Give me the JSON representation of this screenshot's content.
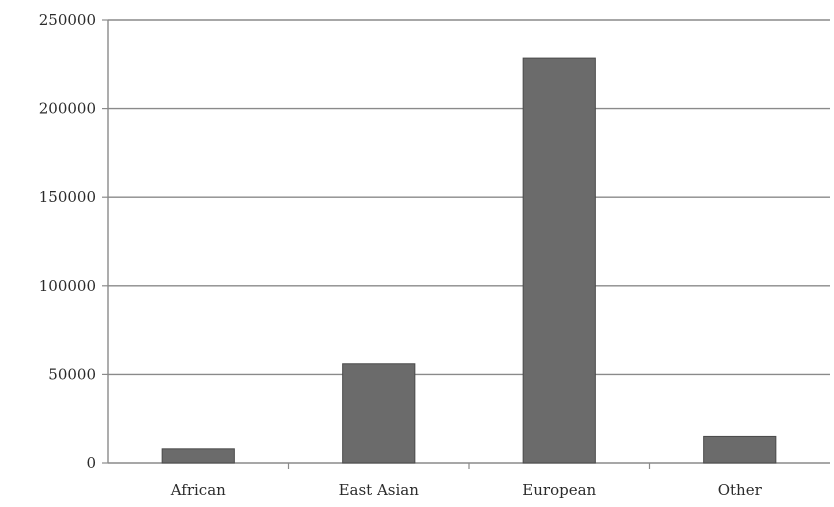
{
  "chart_data": {
    "type": "bar",
    "categories": [
      "African",
      "East Asian",
      "European",
      "Other"
    ],
    "values": [
      8000,
      56000,
      228500,
      15000
    ],
    "ylim": [
      0,
      250000
    ],
    "yticks": [
      "0",
      "50000",
      "100000",
      "150000",
      "200000",
      "250000"
    ],
    "grid": true,
    "legend": "none",
    "bar_color": "#6b6b6b",
    "grid_color": "#8a8a8a"
  }
}
